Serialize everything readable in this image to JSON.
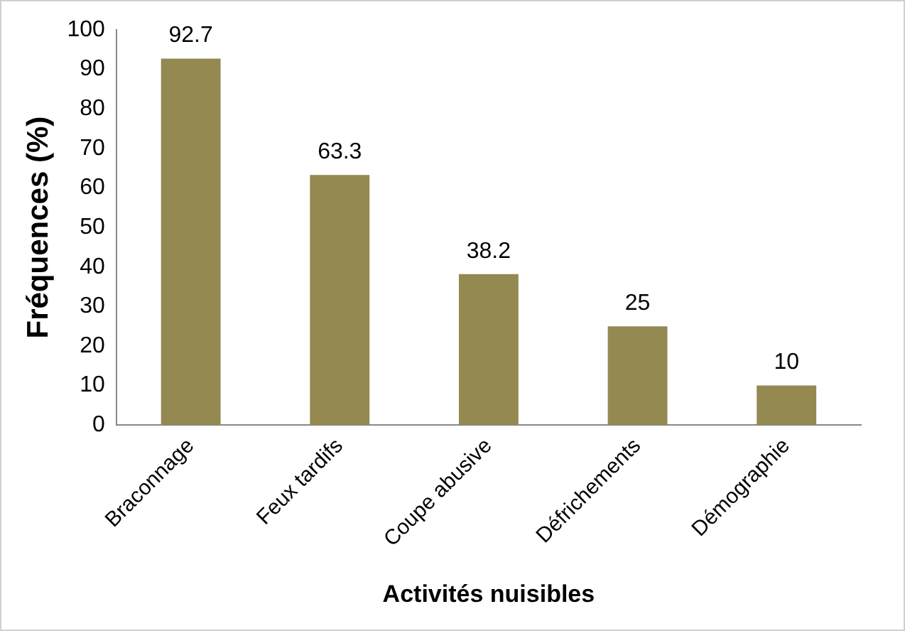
{
  "chart_data": {
    "type": "bar",
    "xlabel": "Activités nuisibles",
    "ylabel": "Fréquences (%)",
    "categories": [
      "Braconnage",
      "Feux tardifs",
      "Coupe abusive",
      "Défrichements",
      "Démographie"
    ],
    "values": [
      92.7,
      63.3,
      38.2,
      25,
      10
    ],
    "color": "#938951",
    "ylim": [
      0,
      100
    ],
    "yticks": [
      0,
      10,
      20,
      30,
      40,
      50,
      60,
      70,
      80,
      90,
      100
    ],
    "grid": false,
    "legend": false,
    "data_labels": true
  }
}
